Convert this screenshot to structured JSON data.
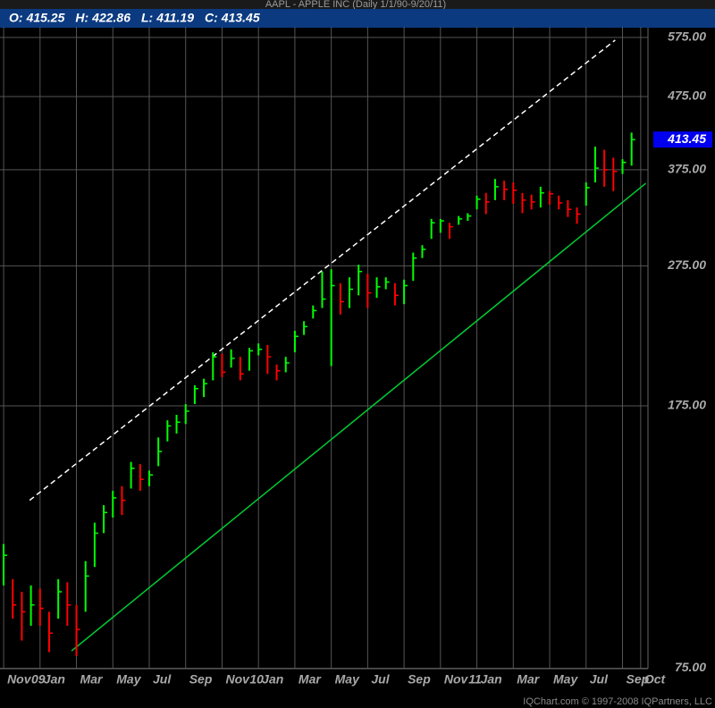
{
  "header": {
    "title": "AAPL - APPLE INC (Daily 1/1/90-9/20/11)",
    "quote": [
      {
        "label": "O:",
        "value": "415.25"
      },
      {
        "label": "H:",
        "value": "422.86"
      },
      {
        "label": "L:",
        "value": "411.19"
      },
      {
        "label": "C:",
        "value": "413.45"
      }
    ]
  },
  "footer": "IQChart.com © 1997-2008 IQPartners, LLC",
  "chart_data": {
    "type": "ohlc",
    "log_scale": true,
    "grid": true,
    "up_color": "#00ff00",
    "down_color": "#ff0000",
    "xlim": [
      -0.2,
      35.4
    ],
    "xticks": [
      {
        "value": 0,
        "label": "Nov"
      },
      {
        "value": 2,
        "label": "Jan"
      },
      {
        "value": 4,
        "label": "Mar"
      },
      {
        "value": 6,
        "label": "May"
      },
      {
        "value": 8,
        "label": "Jul"
      },
      {
        "value": 10,
        "label": "Sep"
      },
      {
        "value": 12,
        "label": "Nov"
      },
      {
        "value": 14,
        "label": "Jan"
      },
      {
        "value": 16,
        "label": "Mar"
      },
      {
        "value": 18,
        "label": "May"
      },
      {
        "value": 20,
        "label": "Jul"
      },
      {
        "value": 22,
        "label": "Sep"
      },
      {
        "value": 24,
        "label": "Nov"
      },
      {
        "value": 26,
        "label": "Jan"
      },
      {
        "value": 28,
        "label": "Mar"
      },
      {
        "value": 30,
        "label": "May"
      },
      {
        "value": 32,
        "label": "Jul"
      },
      {
        "value": 34,
        "label": "Sep"
      },
      {
        "value": 35,
        "label": "Oct"
      }
    ],
    "year_labels": [
      {
        "value": 2,
        "label": "09"
      },
      {
        "value": 14,
        "label": "10"
      },
      {
        "value": 26,
        "label": "11"
      }
    ],
    "ylim": [
      75,
      595
    ],
    "yticks": [
      {
        "value": 75,
        "label": "75.00"
      },
      {
        "value": 175,
        "label": "175.00"
      },
      {
        "value": 275,
        "label": "275.00"
      },
      {
        "value": 375,
        "label": "375.00"
      },
      {
        "value": 475,
        "label": "475.00"
      },
      {
        "value": 575,
        "label": "575.00"
      }
    ],
    "last_price": {
      "value": 413.45,
      "label": "413.45"
    },
    "x": [
      0,
      0.5,
      1,
      1.5,
      2,
      2.5,
      3,
      3.5,
      4,
      4.5,
      5,
      5.5,
      6,
      6.5,
      7,
      7.5,
      8,
      8.5,
      9,
      9.5,
      10,
      10.5,
      11,
      11.5,
      12,
      12.5,
      13,
      13.5,
      14,
      14.5,
      15,
      15.5,
      16,
      16.5,
      17,
      17.5,
      18,
      18.5,
      19,
      19.5,
      20,
      20.5,
      21,
      21.5,
      22,
      22.5,
      23,
      23.5,
      24,
      24.5,
      25,
      25.5,
      26,
      26.5,
      27,
      27.5,
      28,
      28.5,
      29,
      29.5,
      30,
      30.5,
      31,
      31.5,
      32,
      32.5,
      33,
      33.5,
      34,
      34.5
    ],
    "high": [
      112,
      100,
      96,
      98,
      97,
      90,
      100,
      99,
      92,
      106,
      120,
      127,
      133,
      135,
      146,
      145,
      142,
      158,
      167,
      170,
      176,
      187,
      191,
      208,
      207,
      210,
      205,
      211,
      214,
      213,
      200,
      205,
      223,
      230,
      242,
      270,
      272,
      260,
      265,
      276,
      268,
      265,
      265,
      260,
      263,
      287,
      294,
      320,
      320,
      316,
      323,
      326,
      345,
      348,
      364,
      362,
      360,
      348,
      346,
      355,
      350,
      345,
      340,
      332,
      360,
      404,
      400,
      390,
      388,
      422.86
    ],
    "low": [
      98,
      88,
      82,
      86,
      86,
      79,
      88,
      86,
      78,
      90,
      104,
      116,
      122,
      123,
      134,
      133,
      135,
      144,
      156,
      160,
      165,
      176,
      180,
      190,
      192,
      198,
      190,
      196,
      206,
      194,
      190,
      195,
      208,
      220,
      232,
      240,
      199,
      235,
      240,
      250,
      240,
      248,
      255,
      242,
      243,
      262,
      282,
      300,
      306,
      300,
      314,
      318,
      330,
      325,
      340,
      340,
      336,
      326,
      330,
      332,
      335,
      330,
      322,
      315,
      334,
      360,
      355,
      350,
      370,
      380
    ],
    "close": [
      108,
      92,
      90,
      92,
      91,
      84,
      96,
      92,
      85,
      101,
      116,
      124,
      130,
      129,
      143,
      138,
      140,
      151,
      164,
      166,
      172,
      185,
      188,
      205,
      195,
      204,
      194,
      209,
      210,
      205,
      196,
      201,
      219,
      226,
      238,
      247,
      258,
      245,
      255,
      270,
      252,
      257,
      261,
      250,
      258,
      282,
      290,
      316,
      318,
      312,
      320,
      323,
      341,
      338,
      355,
      352,
      351,
      340,
      338,
      348,
      347,
      337,
      330,
      325,
      354,
      377,
      375,
      373,
      384,
      413.45
    ],
    "trendlines": [
      {
        "x": [
          1.43,
          33.6
        ],
        "y": [
          129,
          570
        ],
        "color": "#ffffff",
        "dashed": true
      },
      {
        "x": [
          3.73,
          35.28
        ],
        "y": [
          79.3,
          359
        ],
        "color": "#00cc33",
        "dashed": false
      }
    ]
  }
}
